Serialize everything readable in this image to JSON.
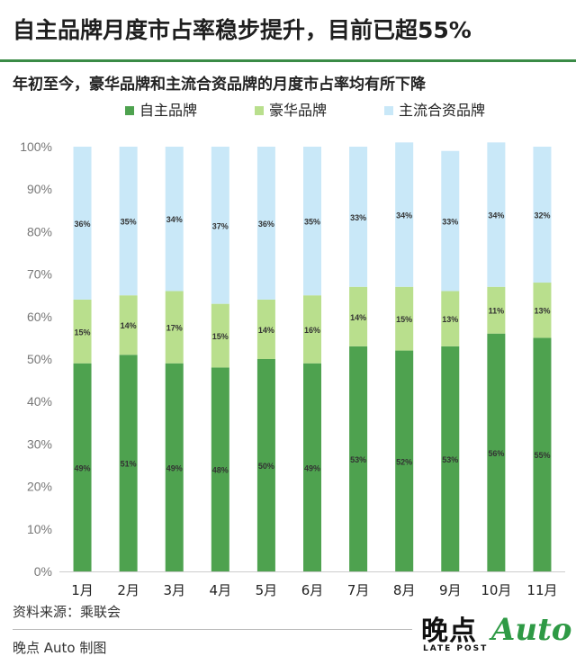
{
  "header": {
    "title": "自主品牌月度市占率稳步提升，目前已超55%",
    "subtitle": "年初至今，豪华品牌和主流合资品牌的月度市占率均有所下降"
  },
  "footer": {
    "source": "资料来源：乘联会",
    "credit": "晚点 Auto 制图"
  },
  "logo": {
    "main": "晚点",
    "sub": "LATE POST",
    "auto": "Auto"
  },
  "chart_data": {
    "type": "bar",
    "stacked": true,
    "percent_stacked": true,
    "categories": [
      "1月",
      "2月",
      "3月",
      "4月",
      "5月",
      "6月",
      "7月",
      "8月",
      "9月",
      "10月",
      "11月"
    ],
    "series": [
      {
        "name": "自主品牌",
        "color": "#4ea24f",
        "values": [
          49,
          51,
          49,
          48,
          50,
          49,
          53,
          52,
          53,
          56,
          55
        ]
      },
      {
        "name": "豪华品牌",
        "color": "#b9df8d",
        "values": [
          15,
          14,
          17,
          15,
          14,
          16,
          14,
          15,
          13,
          11,
          13
        ]
      },
      {
        "name": "主流合资品牌",
        "color": "#c9e8f8",
        "values": [
          36,
          35,
          34,
          37,
          36,
          35,
          33,
          34,
          33,
          34,
          32
        ]
      }
    ],
    "value_labels": [
      [
        "49%",
        "51%",
        "49%",
        "48%",
        "50%",
        "49%",
        "53%",
        "52%",
        "53%",
        "56%",
        "55%"
      ],
      [
        "15%",
        "14%",
        "17%",
        "15%",
        "14%",
        "16%",
        "14%",
        "15%",
        "13%",
        "11%",
        "13%"
      ],
      [
        "36%",
        "35%",
        "34%",
        "37%",
        "36%",
        "35%",
        "33%",
        "34%",
        "33%",
        "34%",
        "32%"
      ]
    ],
    "yticks": [
      "0%",
      "10%",
      "20%",
      "30%",
      "40%",
      "50%",
      "60%",
      "70%",
      "80%",
      "90%",
      "100%"
    ],
    "ylim": [
      0,
      100
    ],
    "grid": false,
    "legend_position": "top"
  }
}
